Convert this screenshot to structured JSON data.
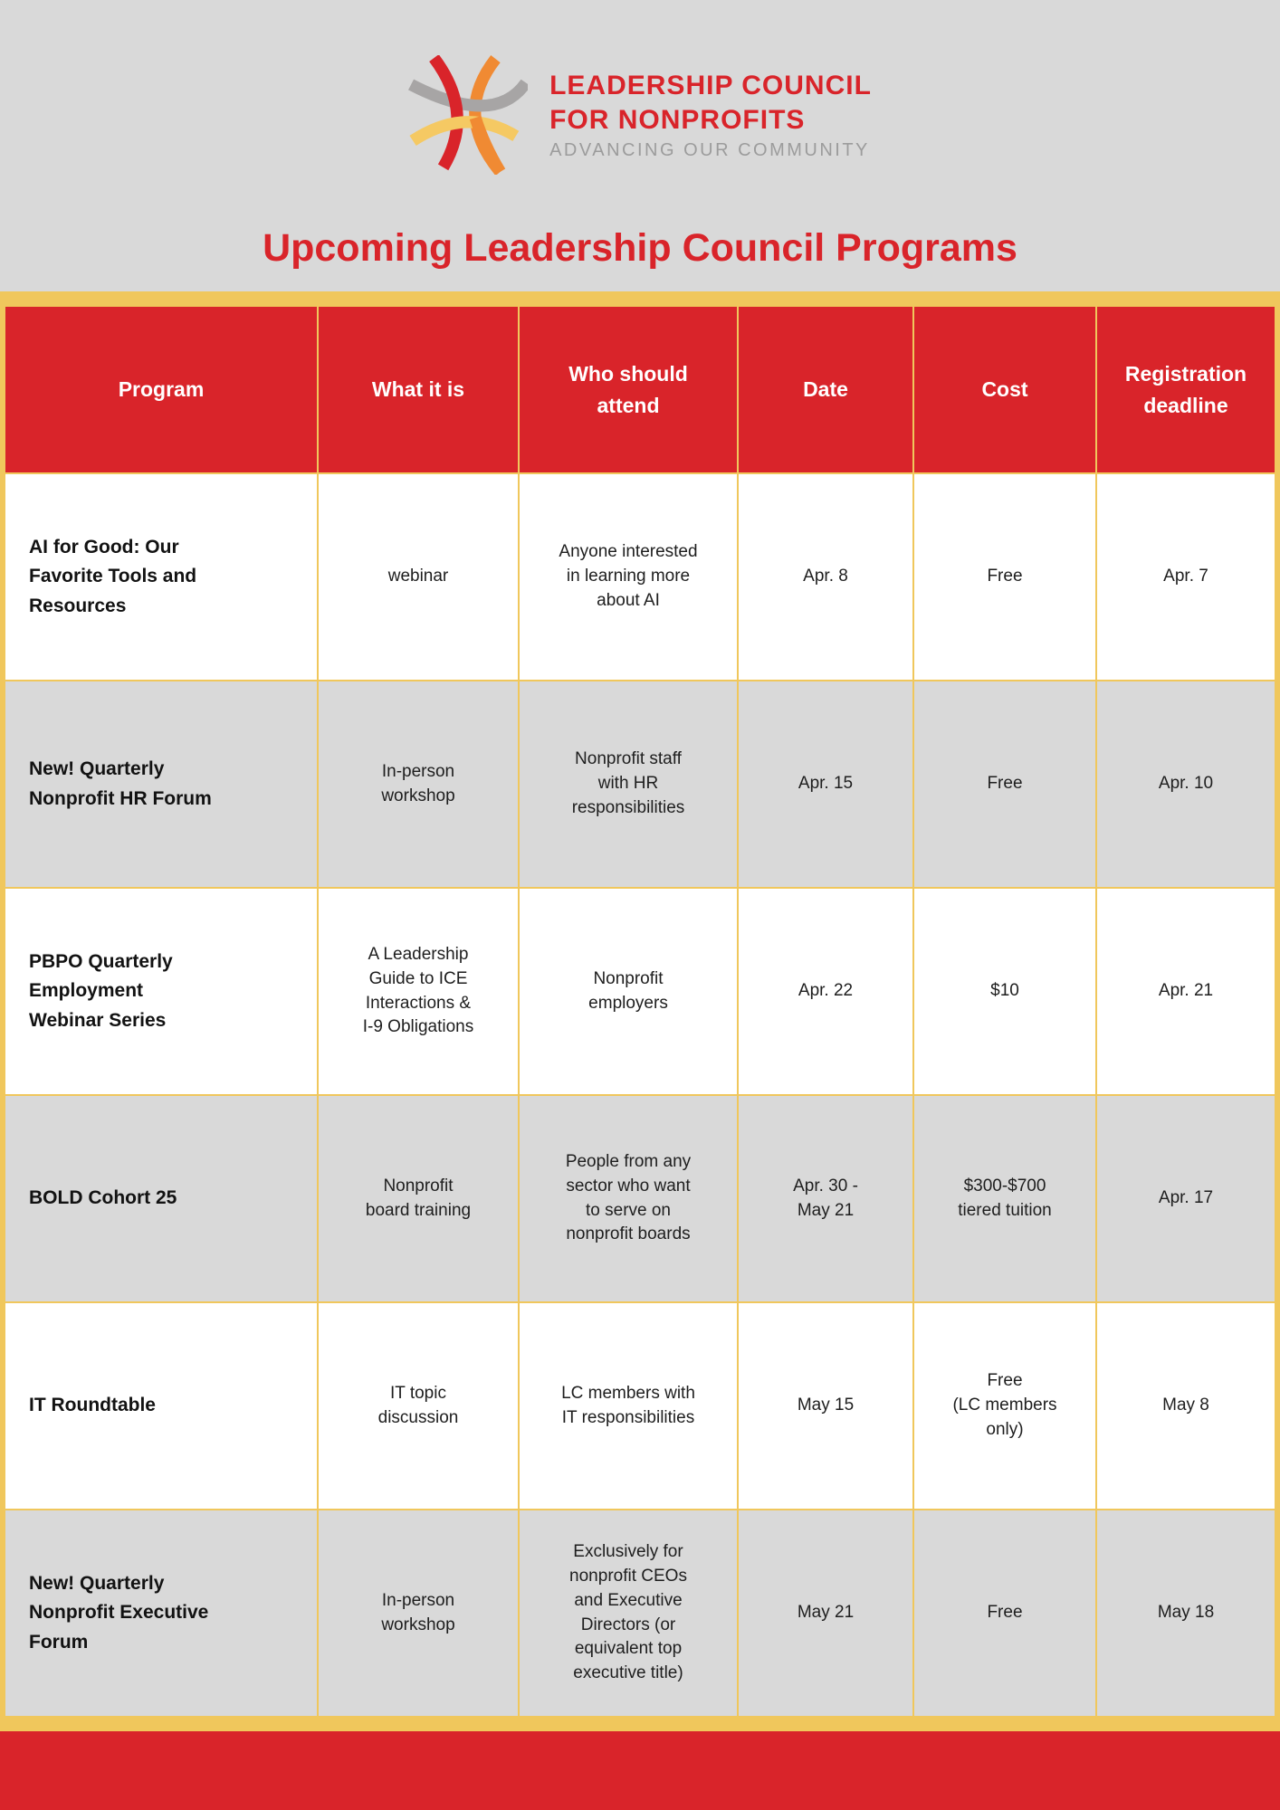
{
  "logo": {
    "name_line1": "LEADERSHIP COUNCIL",
    "name_line2": "FOR NONPROFITS",
    "tagline": "ADVANCING OUR COMMUNITY"
  },
  "page_title": "Upcoming Leadership Council Programs",
  "colors": {
    "red": "#D9242A",
    "gold": "#F0C75C",
    "page_gray": "#D9D9D9",
    "row_gray": "#D9D9D9",
    "logo_orange": "#F08A33",
    "logo_yellow": "#F5C963",
    "logo_gray": "#A7A5A5",
    "tagline_gray": "#9C9C9C"
  },
  "table": {
    "columns": [
      "Program",
      "What it is",
      "Who should\nattend",
      "Date",
      "Cost",
      "Registration\ndeadline"
    ],
    "rows": [
      {
        "shade": "white",
        "program": "AI for Good: Our\nFavorite Tools and\nResources",
        "what": "webinar",
        "who": "Anyone interested\nin learning more\nabout AI",
        "date": "Apr. 8",
        "cost": "Free",
        "deadline": "Apr. 7"
      },
      {
        "shade": "gray",
        "program": "New! Quarterly\nNonprofit HR Forum",
        "what": "In-person\nworkshop",
        "who": "Nonprofit staff\nwith HR\nresponsibilities",
        "date": "Apr. 15",
        "cost": "Free",
        "deadline": "Apr. 10"
      },
      {
        "shade": "white",
        "program": "PBPO Quarterly\nEmployment\nWebinar Series",
        "what": "A Leadership\nGuide to ICE\nInteractions &\nI-9 Obligations",
        "who": "Nonprofit\nemployers",
        "date": "Apr. 22",
        "cost": "$10",
        "deadline": "Apr. 21"
      },
      {
        "shade": "gray",
        "program": "BOLD Cohort 25",
        "what": "Nonprofit\nboard training",
        "who": "People from any\nsector who want\nto serve on\nnonprofit boards",
        "date": "Apr. 30 -\nMay 21",
        "cost": "$300-$700\ntiered tuition",
        "deadline": "Apr. 17"
      },
      {
        "shade": "white",
        "program": "IT Roundtable",
        "what": "IT topic\ndiscussion",
        "who": "LC members with\nIT responsibilities",
        "date": "May 15",
        "cost": "Free\n(LC members\nonly)",
        "deadline": "May 8"
      },
      {
        "shade": "gray",
        "program": "New! Quarterly\nNonprofit Executive\nForum",
        "what": "In-person\nworkshop",
        "who": "Exclusively for\nnonprofit CEOs\nand Executive\nDirectors (or\nequivalent top\nexecutive title)",
        "date": "May 21",
        "cost": "Free",
        "deadline": "May 18"
      }
    ]
  }
}
